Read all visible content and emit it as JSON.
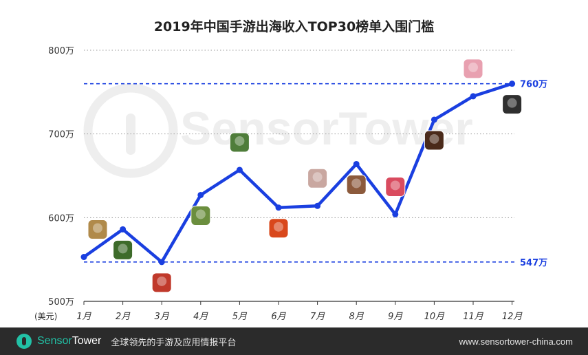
{
  "chart_data": {
    "type": "line",
    "title": "2019年中国手游出海收入TOP30榜单入围门槛",
    "ylabel": "(美元)",
    "categories": [
      "1月",
      "2月",
      "3月",
      "4月",
      "5月",
      "6月",
      "7月",
      "8月",
      "9月",
      "10月",
      "11月",
      "12月"
    ],
    "series": [
      {
        "values": [
          553,
          586,
          547,
          627,
          657,
          612,
          614,
          664,
          604,
          717,
          745,
          760
        ],
        "color": "#1a3fe0"
      }
    ],
    "ylim": [
      500,
      800
    ],
    "yticks": [
      500,
      600,
      700,
      800
    ],
    "ytick_labels": [
      "500万",
      "600万",
      "700万",
      "800万"
    ],
    "reference_lines": [
      {
        "value": 760,
        "label": "760万",
        "color": "#1a3fe0"
      },
      {
        "value": 547,
        "label": "547万",
        "color": "#1a3fe0"
      }
    ],
    "grid": true,
    "watermark": "SensorTower",
    "colors": {
      "line": "#1a3fe0",
      "grid": "#999999",
      "axis": "#333333"
    }
  },
  "footer": {
    "brand_sensor": "Sensor",
    "brand_tower": "Tower",
    "tagline": "全球领先的手游及应用情报平台",
    "url": "www.sensortower-china.com",
    "logo_icon": "sensortower-logo-icon"
  }
}
